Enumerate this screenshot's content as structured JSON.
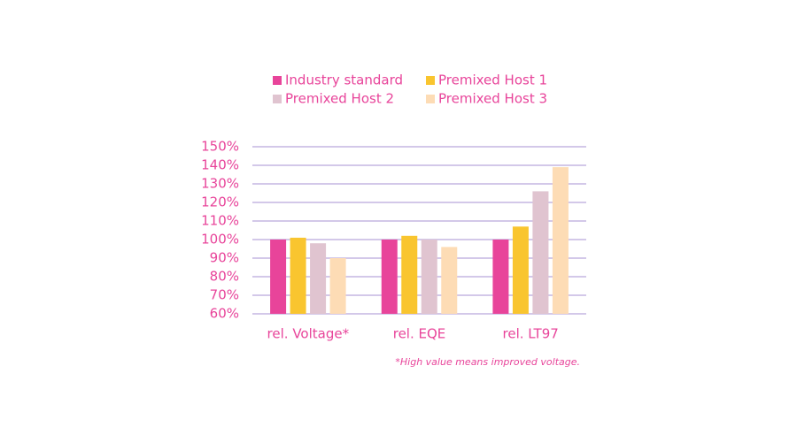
{
  "chart_data": {
    "type": "bar",
    "categories": [
      "rel. Voltage*",
      "rel. EQE",
      "rel. LT97"
    ],
    "series": [
      {
        "name": "Industry standard",
        "color": "#e8449a",
        "values": [
          100,
          100,
          100
        ]
      },
      {
        "name": "Premixed Host 1",
        "color": "#f9c52f",
        "values": [
          101,
          102,
          107
        ]
      },
      {
        "name": "Premixed Host 2",
        "color": "#e0c4d0",
        "values": [
          98,
          100,
          126
        ]
      },
      {
        "name": "Premixed Host 3",
        "color": "#fddcb5",
        "values": [
          90,
          96,
          139
        ]
      }
    ],
    "ylim": [
      60,
      150
    ],
    "yticks": [
      {
        "value": 60,
        "label": "60%"
      },
      {
        "value": 70,
        "label": "70%"
      },
      {
        "value": 80,
        "label": "80%"
      },
      {
        "value": 90,
        "label": "90%"
      },
      {
        "value": 100,
        "label": "100%"
      },
      {
        "value": 110,
        "label": "110%"
      },
      {
        "value": 120,
        "label": "120%"
      },
      {
        "value": 130,
        "label": "130%"
      },
      {
        "value": 140,
        "label": "140%"
      },
      {
        "value": 150,
        "label": "150%"
      }
    ],
    "grid": true,
    "annotation": "*High value means improved voltage."
  }
}
